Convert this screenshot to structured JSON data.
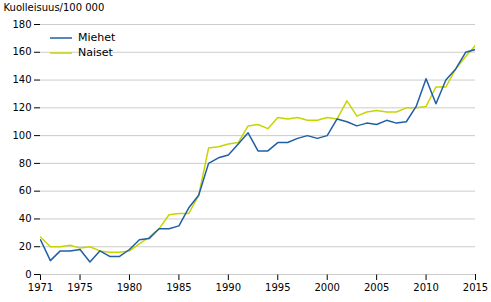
{
  "chart_data": {
    "type": "line",
    "x": [
      1971,
      1972,
      1973,
      1974,
      1975,
      1976,
      1977,
      1978,
      1979,
      1980,
      1981,
      1982,
      1983,
      1984,
      1985,
      1986,
      1987,
      1988,
      1989,
      1990,
      1991,
      1992,
      1993,
      1994,
      1995,
      1996,
      1997,
      1998,
      1999,
      2000,
      2001,
      2002,
      2003,
      2004,
      2005,
      2006,
      2007,
      2008,
      2009,
      2010,
      2011,
      2012,
      2013,
      2014,
      2015
    ],
    "series": [
      {
        "name": "Miehet",
        "color": "#1f5fa6",
        "values": [
          25,
          10,
          17,
          17,
          18,
          9,
          17,
          13,
          13,
          18,
          25,
          26,
          33,
          33,
          35,
          48,
          57,
          80,
          84,
          86,
          94,
          102,
          89,
          89,
          95,
          95,
          98,
          100,
          98,
          100,
          112,
          110,
          107,
          109,
          108,
          111,
          109,
          110,
          121,
          141,
          123,
          140,
          148,
          160,
          162
        ]
      },
      {
        "name": "Naiset",
        "color": "#c8d400",
        "values": [
          27,
          20,
          20,
          21,
          19,
          20,
          17,
          16,
          16,
          17,
          22,
          27,
          33,
          43,
          44,
          44,
          57,
          91,
          92,
          94,
          95,
          107,
          108,
          105,
          113,
          112,
          113,
          111,
          111,
          113,
          112,
          125,
          114,
          117,
          118,
          117,
          117,
          120,
          120,
          121,
          135,
          135,
          148,
          157,
          165
        ]
      }
    ],
    "ylabel": "Kuolleisuus/100 000",
    "xlim": [
      1971,
      2015
    ],
    "xticks": [
      1971,
      1975,
      1980,
      1985,
      1990,
      1995,
      2000,
      2005,
      2010,
      2015
    ],
    "ylim": [
      0,
      180
    ],
    "yticks": [
      0,
      20,
      40,
      60,
      80,
      100,
      120,
      140,
      160,
      180
    ],
    "grid": true,
    "legend": "upper left"
  }
}
